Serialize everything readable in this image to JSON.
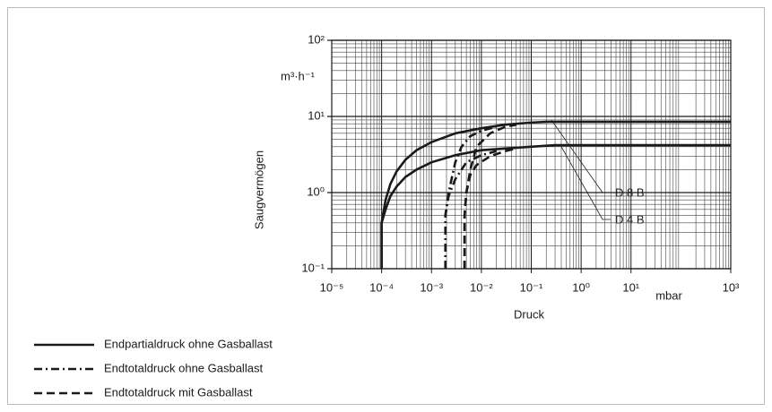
{
  "chart_data": {
    "type": "line",
    "log_x": true,
    "log_y": true,
    "grid": true,
    "xlabel": "Druck",
    "ylabel": "Saugvermögen",
    "xunit": "mbar",
    "yunit": "m³·h⁻¹",
    "xlim": [
      1e-05,
      1000
    ],
    "ylim": [
      0.1,
      100
    ],
    "xticks": [
      {
        "value": 1e-05,
        "label": "10⁻⁵"
      },
      {
        "value": 0.0001,
        "label": "10⁻⁴"
      },
      {
        "value": 0.001,
        "label": "10⁻³"
      },
      {
        "value": 0.01,
        "label": "10⁻²"
      },
      {
        "value": 0.1,
        "label": "10⁻¹"
      },
      {
        "value": 1,
        "label": "10⁰"
      },
      {
        "value": 10,
        "label": "10¹"
      },
      {
        "value": 1000,
        "label": "10³"
      }
    ],
    "yticks": [
      {
        "value": 0.1,
        "label": "10⁻¹"
      },
      {
        "value": 1,
        "label": "10⁰"
      },
      {
        "value": 10,
        "label": "10¹"
      },
      {
        "value": 100,
        "label": "10²"
      }
    ],
    "annotations": [
      "D 8 B",
      "D 4 B"
    ],
    "series": [
      {
        "name": "Endpartialdruck ohne Gasballast",
        "color": "#1a1a1a",
        "style": "solid",
        "lines": [
          {
            "x": [
              0.0001,
              0.0001,
              0.00012,
              0.00015,
              0.0002,
              0.0003,
              0.0005,
              0.001,
              0.003,
              0.01,
              0.03,
              0.1,
              0.2,
              1000
            ],
            "values": [
              0.1,
              0.4,
              0.8,
              1.3,
              1.9,
              2.7,
              3.6,
              4.6,
              6,
              7,
              7.8,
              8.3,
              8.5,
              8.5
            ]
          },
          {
            "x": [
              0.0001,
              0.0001,
              0.00012,
              0.00015,
              0.0002,
              0.0003,
              0.0005,
              0.001,
              0.003,
              0.01,
              0.1,
              0.3,
              1000
            ],
            "values": [
              0.1,
              0.4,
              0.6,
              0.9,
              1.2,
              1.6,
              2,
              2.5,
              3.1,
              3.6,
              4,
              4.2,
              4.2
            ]
          }
        ]
      },
      {
        "name": "Endtotaldruck ohne Gasballast",
        "color": "#1a1a1a",
        "style": "dashdot",
        "lines": [
          {
            "x": [
              0.0019,
              0.0019,
              0.0022,
              0.003,
              0.004,
              0.006,
              0.01,
              0.02
            ],
            "values": [
              0.1,
              0.5,
              1,
              2.5,
              4,
              5.5,
              6.5,
              7.3
            ]
          },
          {
            "x": [
              0.0019,
              0.0019,
              0.0022,
              0.003,
              0.005,
              0.01,
              0.02
            ],
            "values": [
              0.1,
              0.5,
              0.9,
              1.5,
              2.5,
              3.1,
              3.5
            ]
          }
        ]
      },
      {
        "name": "Endtotaldruck mit Gasballast",
        "color": "#1a1a1a",
        "style": "dashed",
        "lines": [
          {
            "x": [
              0.0046,
              0.0046,
              0.005,
              0.006,
              0.008,
              0.015,
              0.03,
              0.05
            ],
            "values": [
              0.1,
              0.5,
              1,
              2,
              4,
              6,
              7.3,
              7.8
            ]
          },
          {
            "x": [
              0.0046,
              0.0046,
              0.005,
              0.006,
              0.008,
              0.015,
              0.03,
              0.05
            ],
            "values": [
              0.1,
              0.5,
              1,
              1.7,
              2.3,
              3,
              3.5,
              3.8
            ]
          }
        ]
      }
    ]
  }
}
